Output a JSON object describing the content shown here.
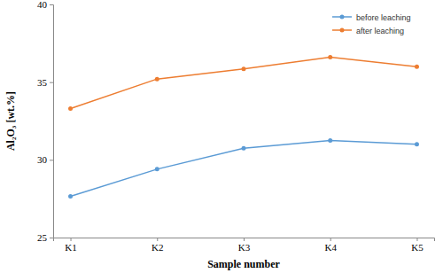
{
  "chart_data": {
    "type": "line",
    "categories": [
      "K1",
      "K2",
      "K3",
      "K4",
      "K5"
    ],
    "series": [
      {
        "name": "before leaching",
        "color": "#5b9bd5",
        "marker": "circle",
        "values": [
          27.65,
          29.4,
          30.75,
          31.25,
          31.0
        ]
      },
      {
        "name": "after leaching",
        "color": "#ed7d31",
        "marker": "circle",
        "values": [
          33.3,
          35.2,
          35.85,
          36.6,
          36.0
        ]
      }
    ],
    "xlabel": "Sample number",
    "ylabel": "Al₂O₃ [wt.%]",
    "ylim": [
      25,
      40
    ],
    "yticks": [
      25,
      30,
      35,
      40
    ],
    "grid": false,
    "legend": "top-right"
  }
}
